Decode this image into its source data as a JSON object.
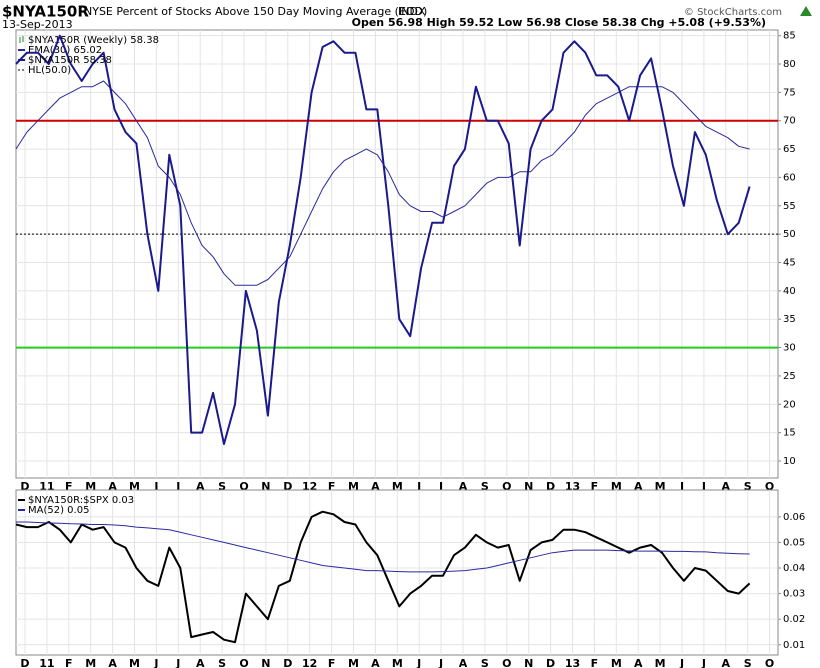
{
  "header": {
    "symbol": "$NYA150R",
    "title": "NYSE Percent of Stocks Above 150 Day Moving Average (EOD)",
    "exchange": "INDX",
    "date": "13-Sep-2013",
    "quote": "Open 56.98  High 59.52  Low 56.98  Close 58.38  Chg +5.08 (+9.53%)",
    "credit": "© StockCharts.com"
  },
  "chart_data": [
    {
      "type": "line",
      "legend_title": "$NYA150R (Weekly) 58.38",
      "categories": [
        "D",
        null,
        "11",
        null,
        "F",
        null,
        "M",
        null,
        "A",
        null,
        "M",
        null,
        "J",
        null,
        "J",
        null,
        "A",
        null,
        "S",
        null,
        "O",
        null,
        "N",
        null,
        "D",
        null,
        "12",
        null,
        "F",
        null,
        "M",
        null,
        "A",
        null,
        "M",
        null,
        "J",
        null,
        "J",
        null,
        "A",
        null,
        "S",
        null,
        "O",
        null,
        "N",
        null,
        "D",
        null,
        "13",
        null,
        "F",
        null,
        "M",
        null,
        "A",
        null,
        "M",
        null,
        "J",
        null,
        "J",
        null,
        "A",
        null,
        "S",
        null,
        "O"
      ],
      "series": [
        {
          "name": "EMA(30) 65.02",
          "color": "#2a2a9a",
          "width": 1,
          "values": [
            65,
            68,
            70,
            72,
            74,
            75,
            76,
            76,
            77,
            75,
            73,
            70,
            67,
            62,
            60,
            57,
            52,
            48,
            46,
            43,
            41,
            41,
            41,
            42,
            44,
            46,
            50,
            54,
            58,
            61,
            63,
            64,
            65,
            64,
            61,
            57,
            55,
            54,
            54,
            53,
            54,
            55,
            57,
            59,
            60,
            60,
            61,
            61,
            63,
            64,
            66,
            68,
            71,
            73,
            74,
            75,
            76,
            76,
            76,
            76,
            75,
            73,
            71,
            69,
            68,
            67,
            65.5,
            65.02,
            null
          ]
        },
        {
          "name": "$NYA150R 58.38",
          "color": "#1a1a8c",
          "width": 2,
          "values": [
            80,
            82,
            82,
            80,
            85,
            80,
            77,
            80,
            82,
            72,
            68,
            66,
            50,
            40,
            64,
            55,
            15,
            15,
            22,
            13,
            20,
            40,
            33,
            18,
            38,
            48,
            60,
            75,
            83,
            84,
            82,
            82,
            72,
            72,
            55,
            35,
            32,
            44,
            52,
            52,
            62,
            65,
            76,
            70,
            70,
            66,
            48,
            65,
            70,
            72,
            82,
            84,
            82,
            78,
            78,
            76,
            70,
            78,
            81,
            72,
            62,
            55,
            68,
            64,
            56,
            50,
            52,
            58.38,
            null
          ]
        }
      ],
      "hlines": [
        {
          "value": 70,
          "color": "#cc0000",
          "style": "solid"
        },
        {
          "value": 30,
          "color": "#22cc22",
          "style": "solid"
        },
        {
          "value": 50,
          "color": "#000000",
          "style": "dotted",
          "name": "HL(50.0)"
        }
      ],
      "ylim": [
        7,
        86
      ],
      "yticks": [
        10,
        15,
        20,
        25,
        30,
        35,
        40,
        45,
        50,
        55,
        60,
        65,
        70,
        75,
        80,
        85
      ],
      "grid": true
    },
    {
      "type": "line",
      "categories": [
        "D",
        null,
        "11",
        null,
        "F",
        null,
        "M",
        null,
        "A",
        null,
        "M",
        null,
        "J",
        null,
        "J",
        null,
        "A",
        null,
        "S",
        null,
        "O",
        null,
        "N",
        null,
        "D",
        null,
        "12",
        null,
        "F",
        null,
        "M",
        null,
        "A",
        null,
        "M",
        null,
        "J",
        null,
        "J",
        null,
        "A",
        null,
        "S",
        null,
        "O",
        null,
        "N",
        null,
        "D",
        null,
        "13",
        null,
        "F",
        null,
        "M",
        null,
        "A",
        null,
        "M",
        null,
        "J",
        null,
        "J",
        null,
        "A",
        null,
        "S",
        null,
        "O"
      ],
      "series": [
        {
          "name": "$NYA150R:$SPX 0.03",
          "color": "#000000",
          "width": 2,
          "values": [
            0.057,
            0.056,
            0.056,
            0.058,
            0.055,
            0.05,
            0.057,
            0.055,
            0.056,
            0.05,
            0.048,
            0.04,
            0.035,
            0.033,
            0.048,
            0.04,
            0.013,
            0.014,
            0.015,
            0.012,
            0.011,
            0.03,
            0.025,
            0.02,
            0.033,
            0.035,
            0.05,
            0.06,
            0.062,
            0.061,
            0.058,
            0.057,
            0.05,
            0.045,
            0.035,
            0.025,
            0.03,
            0.033,
            0.037,
            0.037,
            0.045,
            0.048,
            0.053,
            0.05,
            0.048,
            0.049,
            0.035,
            0.047,
            0.05,
            0.051,
            0.055,
            0.055,
            0.054,
            0.052,
            0.05,
            0.048,
            0.046,
            0.048,
            0.049,
            0.046,
            0.04,
            0.035,
            0.04,
            0.039,
            0.035,
            0.031,
            0.03,
            0.034,
            null
          ]
        },
        {
          "name": "MA(52) 0.05",
          "color": "#2a2aa0",
          "width": 1,
          "values": [
            0.058,
            0.058,
            0.0578,
            0.0576,
            0.0575,
            0.0573,
            0.0572,
            0.057,
            0.057,
            0.0568,
            0.0565,
            0.056,
            0.0557,
            0.0553,
            0.055,
            0.054,
            0.053,
            0.052,
            0.051,
            0.05,
            0.049,
            0.048,
            0.047,
            0.046,
            0.045,
            0.044,
            0.043,
            0.042,
            0.041,
            0.0405,
            0.04,
            0.0395,
            0.039,
            0.039,
            0.0388,
            0.0386,
            0.0385,
            0.0385,
            0.0385,
            0.0386,
            0.0388,
            0.039,
            0.0395,
            0.04,
            0.041,
            0.042,
            0.043,
            0.044,
            0.045,
            0.046,
            0.0465,
            0.047,
            0.047,
            0.047,
            0.047,
            0.0468,
            0.0467,
            0.0466,
            0.0466,
            0.0466,
            0.0465,
            0.0465,
            0.0464,
            0.0463,
            0.046,
            0.0458,
            0.0456,
            0.0455,
            null
          ]
        }
      ],
      "ylim": [
        0.006,
        0.0705
      ],
      "yticks": [
        0.01,
        0.02,
        0.03,
        0.04,
        0.05,
        0.06
      ],
      "grid": true
    }
  ]
}
